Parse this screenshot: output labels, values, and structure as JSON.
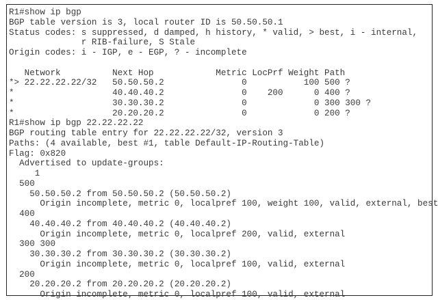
{
  "terminal": {
    "lines": [
      "R1#show ip bgp",
      "BGP table version is 3, local router ID is 50.50.50.1",
      "Status codes: s suppressed, d damped, h history, * valid, > best, i - internal,",
      "              r RIB-failure, S Stale",
      "Origin codes: i - IGP, e - EGP, ? - incomplete",
      "",
      "   Network          Next Hop            Metric LocPrf Weight Path",
      "*> 22.22.22.22/32   50.50.50.2               0           100 500 ?",
      "*                   40.40.40.2               0    200      0 400 ?",
      "*                   30.30.30.2               0             0 300 300 ?",
      "*                   20.20.20.2               0             0 200 ?",
      "R1#show ip bgp 22.22.22.22",
      "BGP routing table entry for 22.22.22.22/32, version 3",
      "Paths: (4 available, best #1, table Default-IP-Routing-Table)",
      "Flag: 0x820",
      "  Advertised to update-groups:",
      "     1",
      "  500",
      "    50.50.50.2 from 50.50.50.2 (50.50.50.2)",
      "      Origin incomplete, metric 0, localpref 100, weight 100, valid, external, best",
      "  400",
      "    40.40.40.2 from 40.40.40.2 (40.40.40.2)",
      "      Origin incomplete, metric 0, localpref 200, valid, external",
      "  300 300",
      "    30.30.30.2 from 30.30.30.2 (30.30.30.2)",
      "      Origin incomplete, metric 0, localpref 100, valid, external",
      "  200",
      "    20.20.20.2 from 20.20.20.2 (20.20.20.2)",
      "      Origin incomplete, metric 0, localpref 100, valid, external"
    ]
  }
}
